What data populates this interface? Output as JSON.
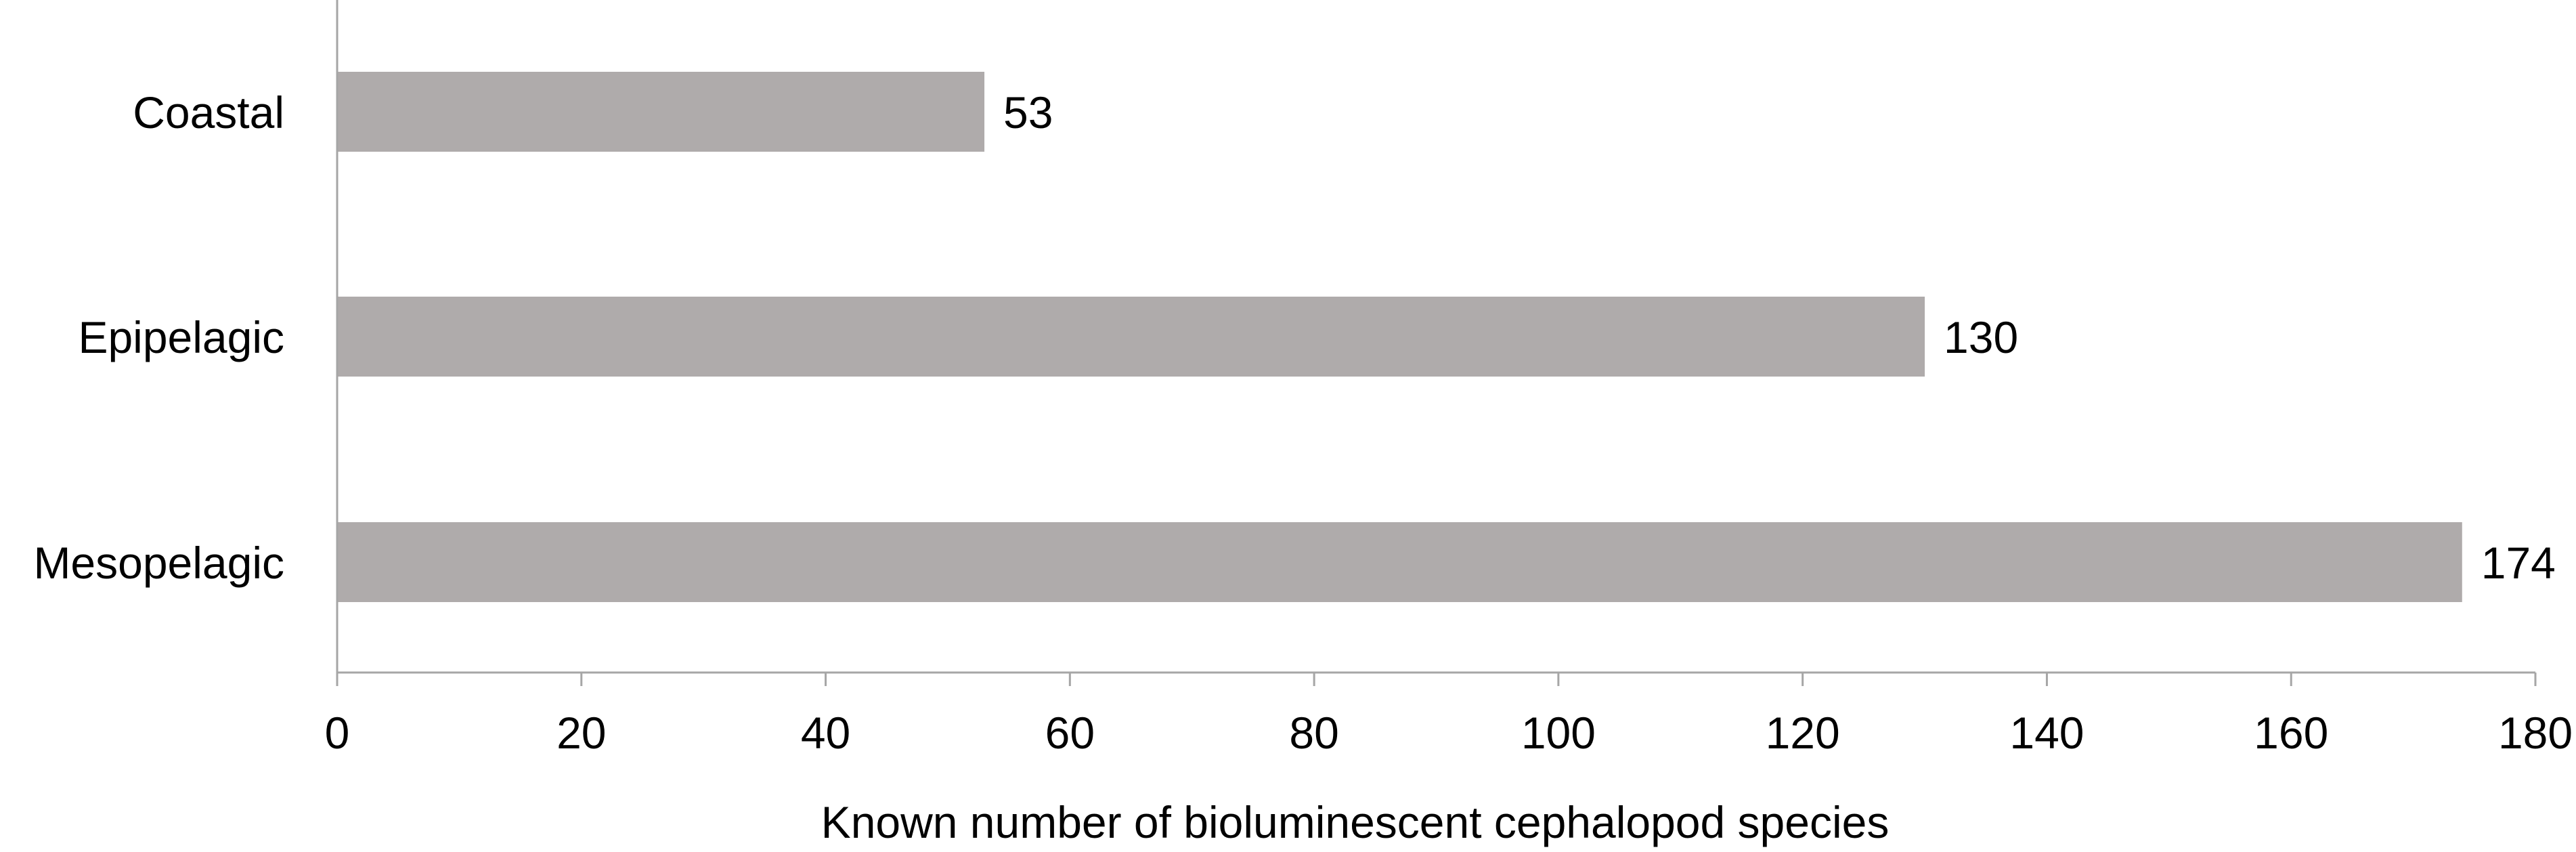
{
  "chart_data": {
    "type": "bar",
    "orientation": "horizontal",
    "categories": [
      "Coastal",
      "Epipelagic",
      "Mesopelagic"
    ],
    "values": [
      53,
      130,
      174
    ],
    "data_labels": [
      "53",
      "130",
      "174"
    ],
    "xlabel": "Known number of bioluminescent cephalopod species",
    "ylabel": "",
    "xlim": [
      0,
      180
    ],
    "xticks": [
      0,
      20,
      40,
      60,
      80,
      100,
      120,
      140,
      160,
      180
    ],
    "xtick_labels": [
      "0",
      "20",
      "40",
      "60",
      "80",
      "100",
      "120",
      "140",
      "160",
      "180"
    ],
    "grid": false,
    "legend": "none",
    "bar_color": "#afabab",
    "axis_color": "#a6a6a6"
  }
}
